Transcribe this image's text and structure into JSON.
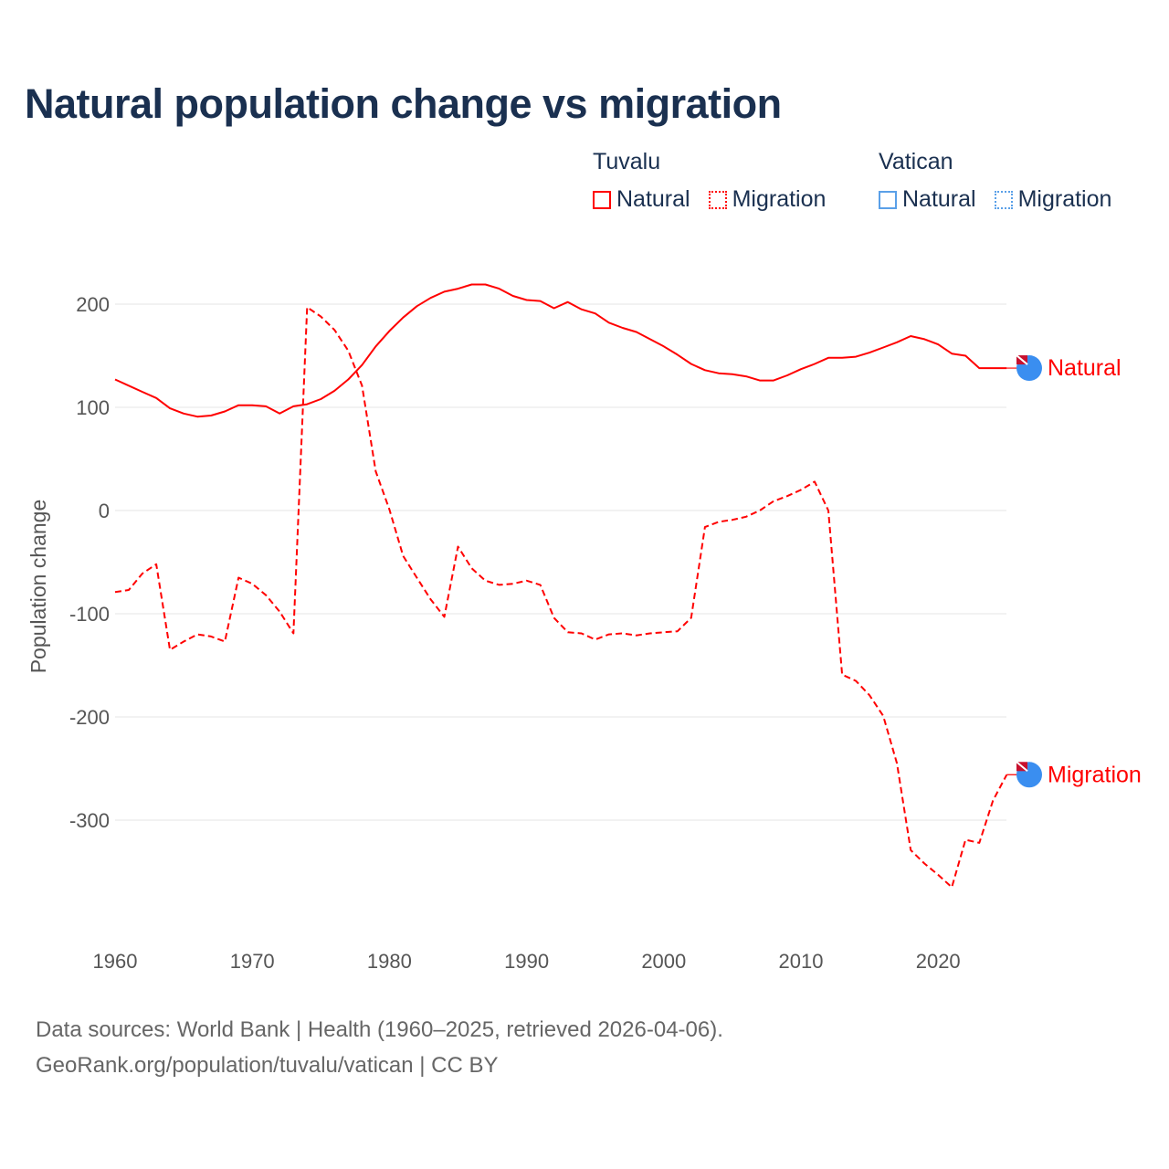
{
  "chart_data": {
    "type": "line",
    "title": "Natural population change vs migration",
    "xlabel": "",
    "ylabel": "Population change",
    "xlim": [
      1960,
      2025
    ],
    "ylim": [
      -400,
      250
    ],
    "x_ticks": [
      1960,
      1970,
      1980,
      1990,
      2000,
      2010,
      2020
    ],
    "y_ticks": [
      200,
      100,
      0,
      -100,
      -200,
      -300
    ],
    "grid": true,
    "legend": {
      "placement": "top-right",
      "groups": [
        {
          "name": "Tuvalu",
          "items": [
            {
              "label": "Natural",
              "style": "solid",
              "color": "#ff0000"
            },
            {
              "label": "Migration",
              "style": "dotted",
              "color": "#ff0000"
            }
          ]
        },
        {
          "name": "Vatican",
          "items": [
            {
              "label": "Natural",
              "style": "solid",
              "color": "#5aa0e8"
            },
            {
              "label": "Migration",
              "style": "dotted",
              "color": "#5aa0e8"
            }
          ]
        }
      ]
    },
    "x": [
      1960,
      1961,
      1962,
      1963,
      1964,
      1965,
      1966,
      1967,
      1968,
      1969,
      1970,
      1971,
      1972,
      1973,
      1974,
      1975,
      1976,
      1977,
      1978,
      1979,
      1980,
      1981,
      1982,
      1983,
      1984,
      1985,
      1986,
      1987,
      1988,
      1989,
      1990,
      1991,
      1992,
      1993,
      1994,
      1995,
      1996,
      1997,
      1998,
      1999,
      2000,
      2001,
      2002,
      2003,
      2004,
      2005,
      2006,
      2007,
      2008,
      2009,
      2010,
      2011,
      2012,
      2013,
      2014,
      2015,
      2016,
      2017,
      2018,
      2019,
      2020,
      2021,
      2022,
      2023,
      2024,
      2025
    ],
    "series": [
      {
        "name": "Natural",
        "country": "Tuvalu",
        "color": "#ff0000",
        "dash": "solid",
        "end_label": "Natural",
        "values": [
          127,
          121,
          115,
          109,
          99,
          94,
          91,
          92,
          96,
          102,
          102,
          101,
          94,
          101,
          103,
          108,
          116,
          127,
          141,
          159,
          174,
          187,
          198,
          206,
          212,
          215,
          219,
          219,
          215,
          208,
          204,
          203,
          196,
          202,
          195,
          191,
          182,
          177,
          173,
          166,
          159,
          151,
          142,
          136,
          133,
          132,
          130,
          126,
          126,
          131,
          137,
          142,
          148,
          148,
          149,
          153,
          158,
          163,
          169,
          166,
          161,
          152,
          150,
          138,
          138,
          138
        ]
      },
      {
        "name": "Migration",
        "country": "Tuvalu",
        "color": "#ff0000",
        "dash": "dashed",
        "end_label": "Migration",
        "values": [
          -79,
          -77,
          -61,
          -52,
          -135,
          -127,
          -120,
          -122,
          -127,
          -65,
          -71,
          -82,
          -98,
          -119,
          197,
          188,
          175,
          155,
          121,
          38,
          1,
          -44,
          -65,
          -86,
          -103,
          -35,
          -56,
          -68,
          -72,
          -71,
          -68,
          -72,
          -104,
          -118,
          -119,
          -125,
          -120,
          -119,
          -121,
          -119,
          -118,
          -117,
          -104,
          -16,
          -11,
          -9,
          -6,
          0,
          9,
          14,
          20,
          28,
          0,
          -159,
          -165,
          -179,
          -199,
          -245,
          -329,
          -342,
          -353,
          -365,
          -319,
          -322,
          -281,
          -256
        ]
      }
    ]
  },
  "footer": {
    "line1": "Data sources: World Bank | Health (1960–2025, retrieved 2026-04-06).",
    "line2": "GeoRank.org/population/tuvalu/vatican | CC BY"
  }
}
